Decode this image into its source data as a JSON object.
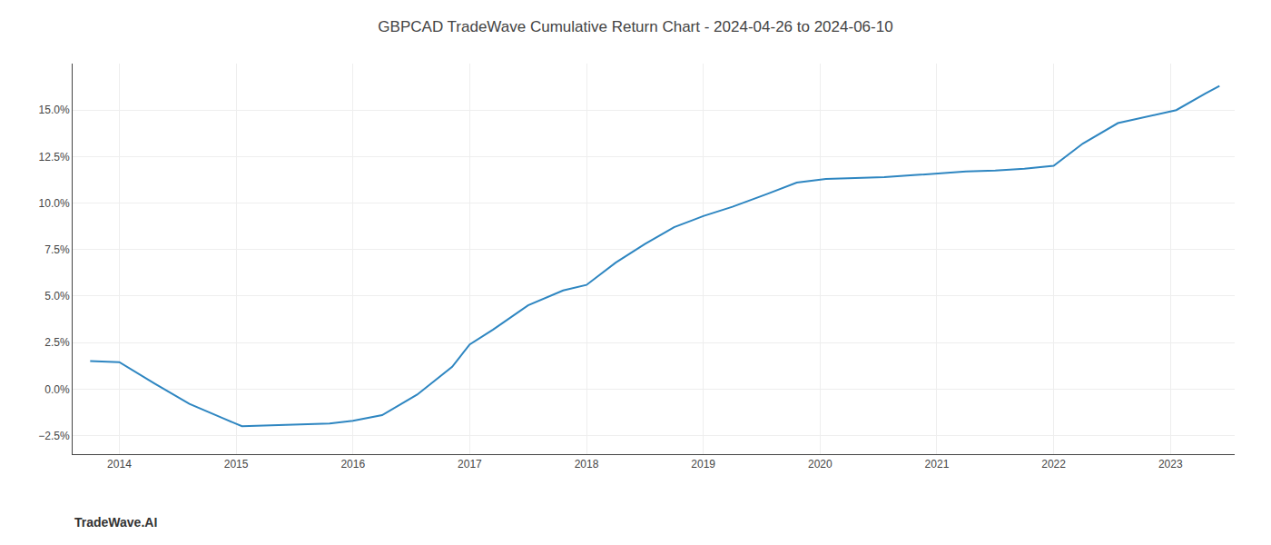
{
  "chart_data": {
    "type": "line",
    "title": "GBPCAD TradeWave Cumulative Return Chart - 2024-04-26 to 2024-06-10",
    "annotations": [
      "TradeWave.AI"
    ],
    "x": [
      2013.75,
      2014.0,
      2014.3,
      2014.6,
      2014.9,
      2015.05,
      2015.3,
      2015.55,
      2015.8,
      2016.0,
      2016.25,
      2016.55,
      2016.85,
      2017.0,
      2017.2,
      2017.5,
      2017.8,
      2018.0,
      2018.25,
      2018.5,
      2018.75,
      2019.0,
      2019.25,
      2019.55,
      2019.8,
      2020.05,
      2020.3,
      2020.55,
      2020.8,
      2021.0,
      2021.25,
      2021.5,
      2021.75,
      2022.0,
      2022.25,
      2022.55,
      2022.8,
      2023.05,
      2023.3,
      2023.42
    ],
    "values": [
      1.5,
      1.45,
      0.3,
      -0.8,
      -1.6,
      -2.0,
      -1.95,
      -1.9,
      -1.85,
      -1.7,
      -1.4,
      -0.3,
      1.2,
      2.4,
      3.2,
      4.5,
      5.3,
      5.6,
      6.8,
      7.8,
      8.7,
      9.3,
      9.8,
      10.5,
      11.1,
      11.3,
      11.35,
      11.4,
      11.5,
      11.6,
      11.7,
      11.75,
      11.85,
      12.0,
      13.2,
      14.3,
      14.65,
      15.0,
      15.9,
      16.3
    ],
    "color": "#2e86c1",
    "xlim": [
      2013.6,
      2023.55
    ],
    "ylim": [
      -3.5,
      17.5
    ],
    "xticks": [
      2014,
      2015,
      2016,
      2017,
      2018,
      2019,
      2020,
      2021,
      2022,
      2023
    ],
    "yticks": [
      {
        "value": -2.5,
        "label": "−2.5%"
      },
      {
        "value": 0.0,
        "label": "0.0%"
      },
      {
        "value": 2.5,
        "label": "2.5%"
      },
      {
        "value": 5.0,
        "label": "5.0%"
      },
      {
        "value": 7.5,
        "label": "7.5%"
      },
      {
        "value": 10.0,
        "label": "10.0%"
      },
      {
        "value": 12.5,
        "label": "12.5%"
      },
      {
        "value": 15.0,
        "label": "15.0%"
      }
    ],
    "grid": true
  }
}
